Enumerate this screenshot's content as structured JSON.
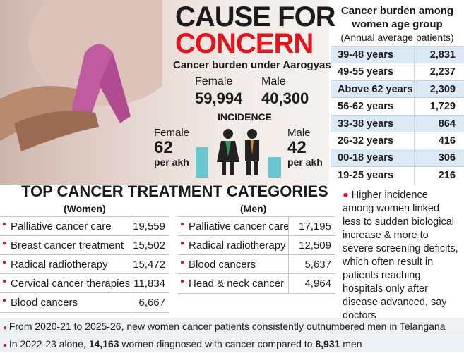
{
  "header": {
    "title_line1": "CAUSE FOR",
    "title_line2": "CONCERN",
    "subtitle": "Cancer burden under Aarogyasri",
    "female": {
      "label": "Female",
      "value": "59,994"
    },
    "male": {
      "label": "Male",
      "value": "40,300"
    }
  },
  "incidence": {
    "title": "INCIDENCE",
    "female": {
      "label": "Female",
      "value": 62,
      "unit": "per akh"
    },
    "male": {
      "label": "Male",
      "value": 42,
      "unit": "per akh"
    }
  },
  "age_table": {
    "title": "Cancer burden among women age group",
    "subtitle": "(Annual average patients)",
    "rows": [
      [
        "39-48 years",
        "2,831"
      ],
      [
        "49-55 years",
        "2,237"
      ],
      [
        "Above 62 years",
        "2,309"
      ],
      [
        "56-62 years",
        "1,729"
      ],
      [
        "33-38 years",
        "864"
      ],
      [
        "26-32 years",
        "416"
      ],
      [
        "00-18 years",
        "306"
      ],
      [
        "19-25 years",
        "216"
      ]
    ]
  },
  "categories": {
    "title": "TOP CANCER TREATMENT CATEGORIES",
    "women": {
      "title": "(Women)",
      "rows": [
        [
          "Palliative cancer care",
          "19,559"
        ],
        [
          "Breast cancer treatment",
          "15,502"
        ],
        [
          "Radical radiotherapy",
          "15,472"
        ],
        [
          "Cervical cancer therapies",
          "11,834"
        ],
        [
          "Blood cancers",
          "6,667"
        ]
      ]
    },
    "men": {
      "title": "(Men)",
      "rows": [
        [
          "Palliative cancer care",
          "17,195"
        ],
        [
          "Radical radiotherapy",
          "12,509"
        ],
        [
          "Blood cancers",
          "5,637"
        ],
        [
          "Head & neck cancer",
          "4,964"
        ]
      ]
    }
  },
  "note": "Higher incidence among women linked less to sudden biological increase & more to severe screening deficits, which often result in patients reaching hospitals only after disease advanced, say doctors",
  "footer": [
    [
      "From 2020-21 to 2025-26, new women cancer patients consistently outnumbered men in Telangana"
    ],
    [
      "In 2022-23 alone, ",
      "14,163",
      " women diagnosed with cancer compared to ",
      "8,931",
      " men"
    ]
  ]
}
